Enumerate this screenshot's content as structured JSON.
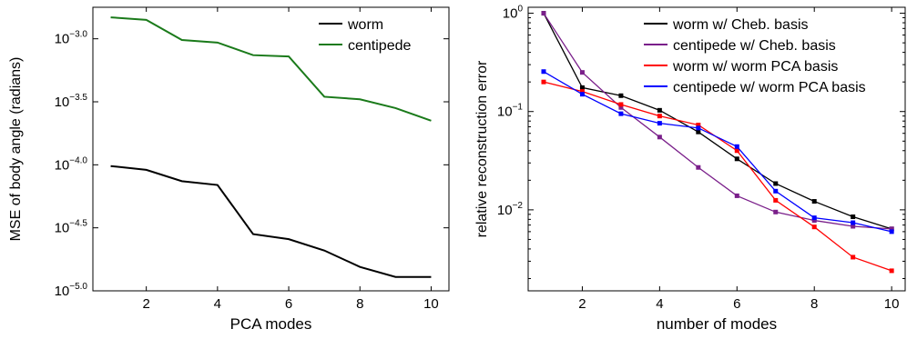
{
  "chart_data": [
    {
      "type": "line",
      "xlabel": "PCA modes",
      "ylabel": "MSE of body angle (radians)",
      "yscale": "log10",
      "ylim_log10": [
        -5.0,
        -2.75
      ],
      "xlim": [
        0.5,
        10.5
      ],
      "x_ticks": [
        2,
        4,
        6,
        8,
        10
      ],
      "y_ticks": [
        {
          "value": -3.0,
          "base": "10",
          "exp": "−3.0"
        },
        {
          "value": -3.5,
          "base": "10",
          "exp": "−3.5"
        },
        {
          "value": -4.0,
          "base": "10",
          "exp": "−4.0"
        },
        {
          "value": -4.5,
          "base": "10",
          "exp": "−4.5"
        },
        {
          "value": -5.0,
          "base": "10",
          "exp": "−5.0"
        }
      ],
      "legend_position": "top-right",
      "grid": false,
      "x": [
        1,
        2,
        3,
        4,
        5,
        6,
        7,
        8,
        9,
        10
      ],
      "series": [
        {
          "name": "worm",
          "color": "#000000",
          "markers": false,
          "log10_values": [
            -4.01,
            -4.04,
            -4.13,
            -4.16,
            -4.55,
            -4.59,
            -4.68,
            -4.81,
            -4.89,
            -4.89
          ]
        },
        {
          "name": "centipede",
          "color": "#1a7a1a",
          "markers": false,
          "log10_values": [
            -2.83,
            -2.85,
            -3.01,
            -3.03,
            -3.13,
            -3.14,
            -3.46,
            -3.48,
            -3.55,
            -3.65
          ]
        }
      ]
    },
    {
      "type": "line",
      "xlabel": "number of modes",
      "ylabel": "relative reconstruction error",
      "yscale": "log10",
      "ylim": [
        0.0015,
        1.15
      ],
      "xlim": [
        0.6,
        10.35
      ],
      "x_ticks": [
        2,
        4,
        6,
        8,
        10
      ],
      "y_ticks": [
        {
          "value": 1,
          "base": "10",
          "exp": "0"
        },
        {
          "value": 0.1,
          "base": "10",
          "exp": "−1"
        },
        {
          "value": 0.01,
          "base": "10",
          "exp": "−2"
        }
      ],
      "legend_position": "top-right",
      "grid": false,
      "x": [
        1,
        2,
        3,
        4,
        5,
        6,
        7,
        8,
        9,
        10
      ],
      "series": [
        {
          "name": "worm w/ Cheb. basis",
          "color": "#000000",
          "markers": true,
          "values": [
            1.0,
            0.175,
            0.145,
            0.103,
            0.062,
            0.033,
            0.0185,
            0.0122,
            0.0085,
            0.0064
          ]
        },
        {
          "name": "centipede w/ Cheb. basis",
          "color": "#7a1f8a",
          "markers": true,
          "values": [
            1.0,
            0.25,
            0.11,
            0.055,
            0.027,
            0.0139,
            0.0095,
            0.0078,
            0.0068,
            0.0064
          ]
        },
        {
          "name": "worm w/ worm PCA basis",
          "color": "#ff0000",
          "markers": true,
          "values": [
            0.2,
            0.16,
            0.118,
            0.09,
            0.073,
            0.04,
            0.0125,
            0.0067,
            0.0033,
            0.0024
          ]
        },
        {
          "name": "centipede w/ worm PCA basis",
          "color": "#0000ff",
          "markers": true,
          "values": [
            0.255,
            0.15,
            0.095,
            0.076,
            0.068,
            0.044,
            0.0155,
            0.0083,
            0.0074,
            0.006
          ]
        }
      ]
    }
  ]
}
